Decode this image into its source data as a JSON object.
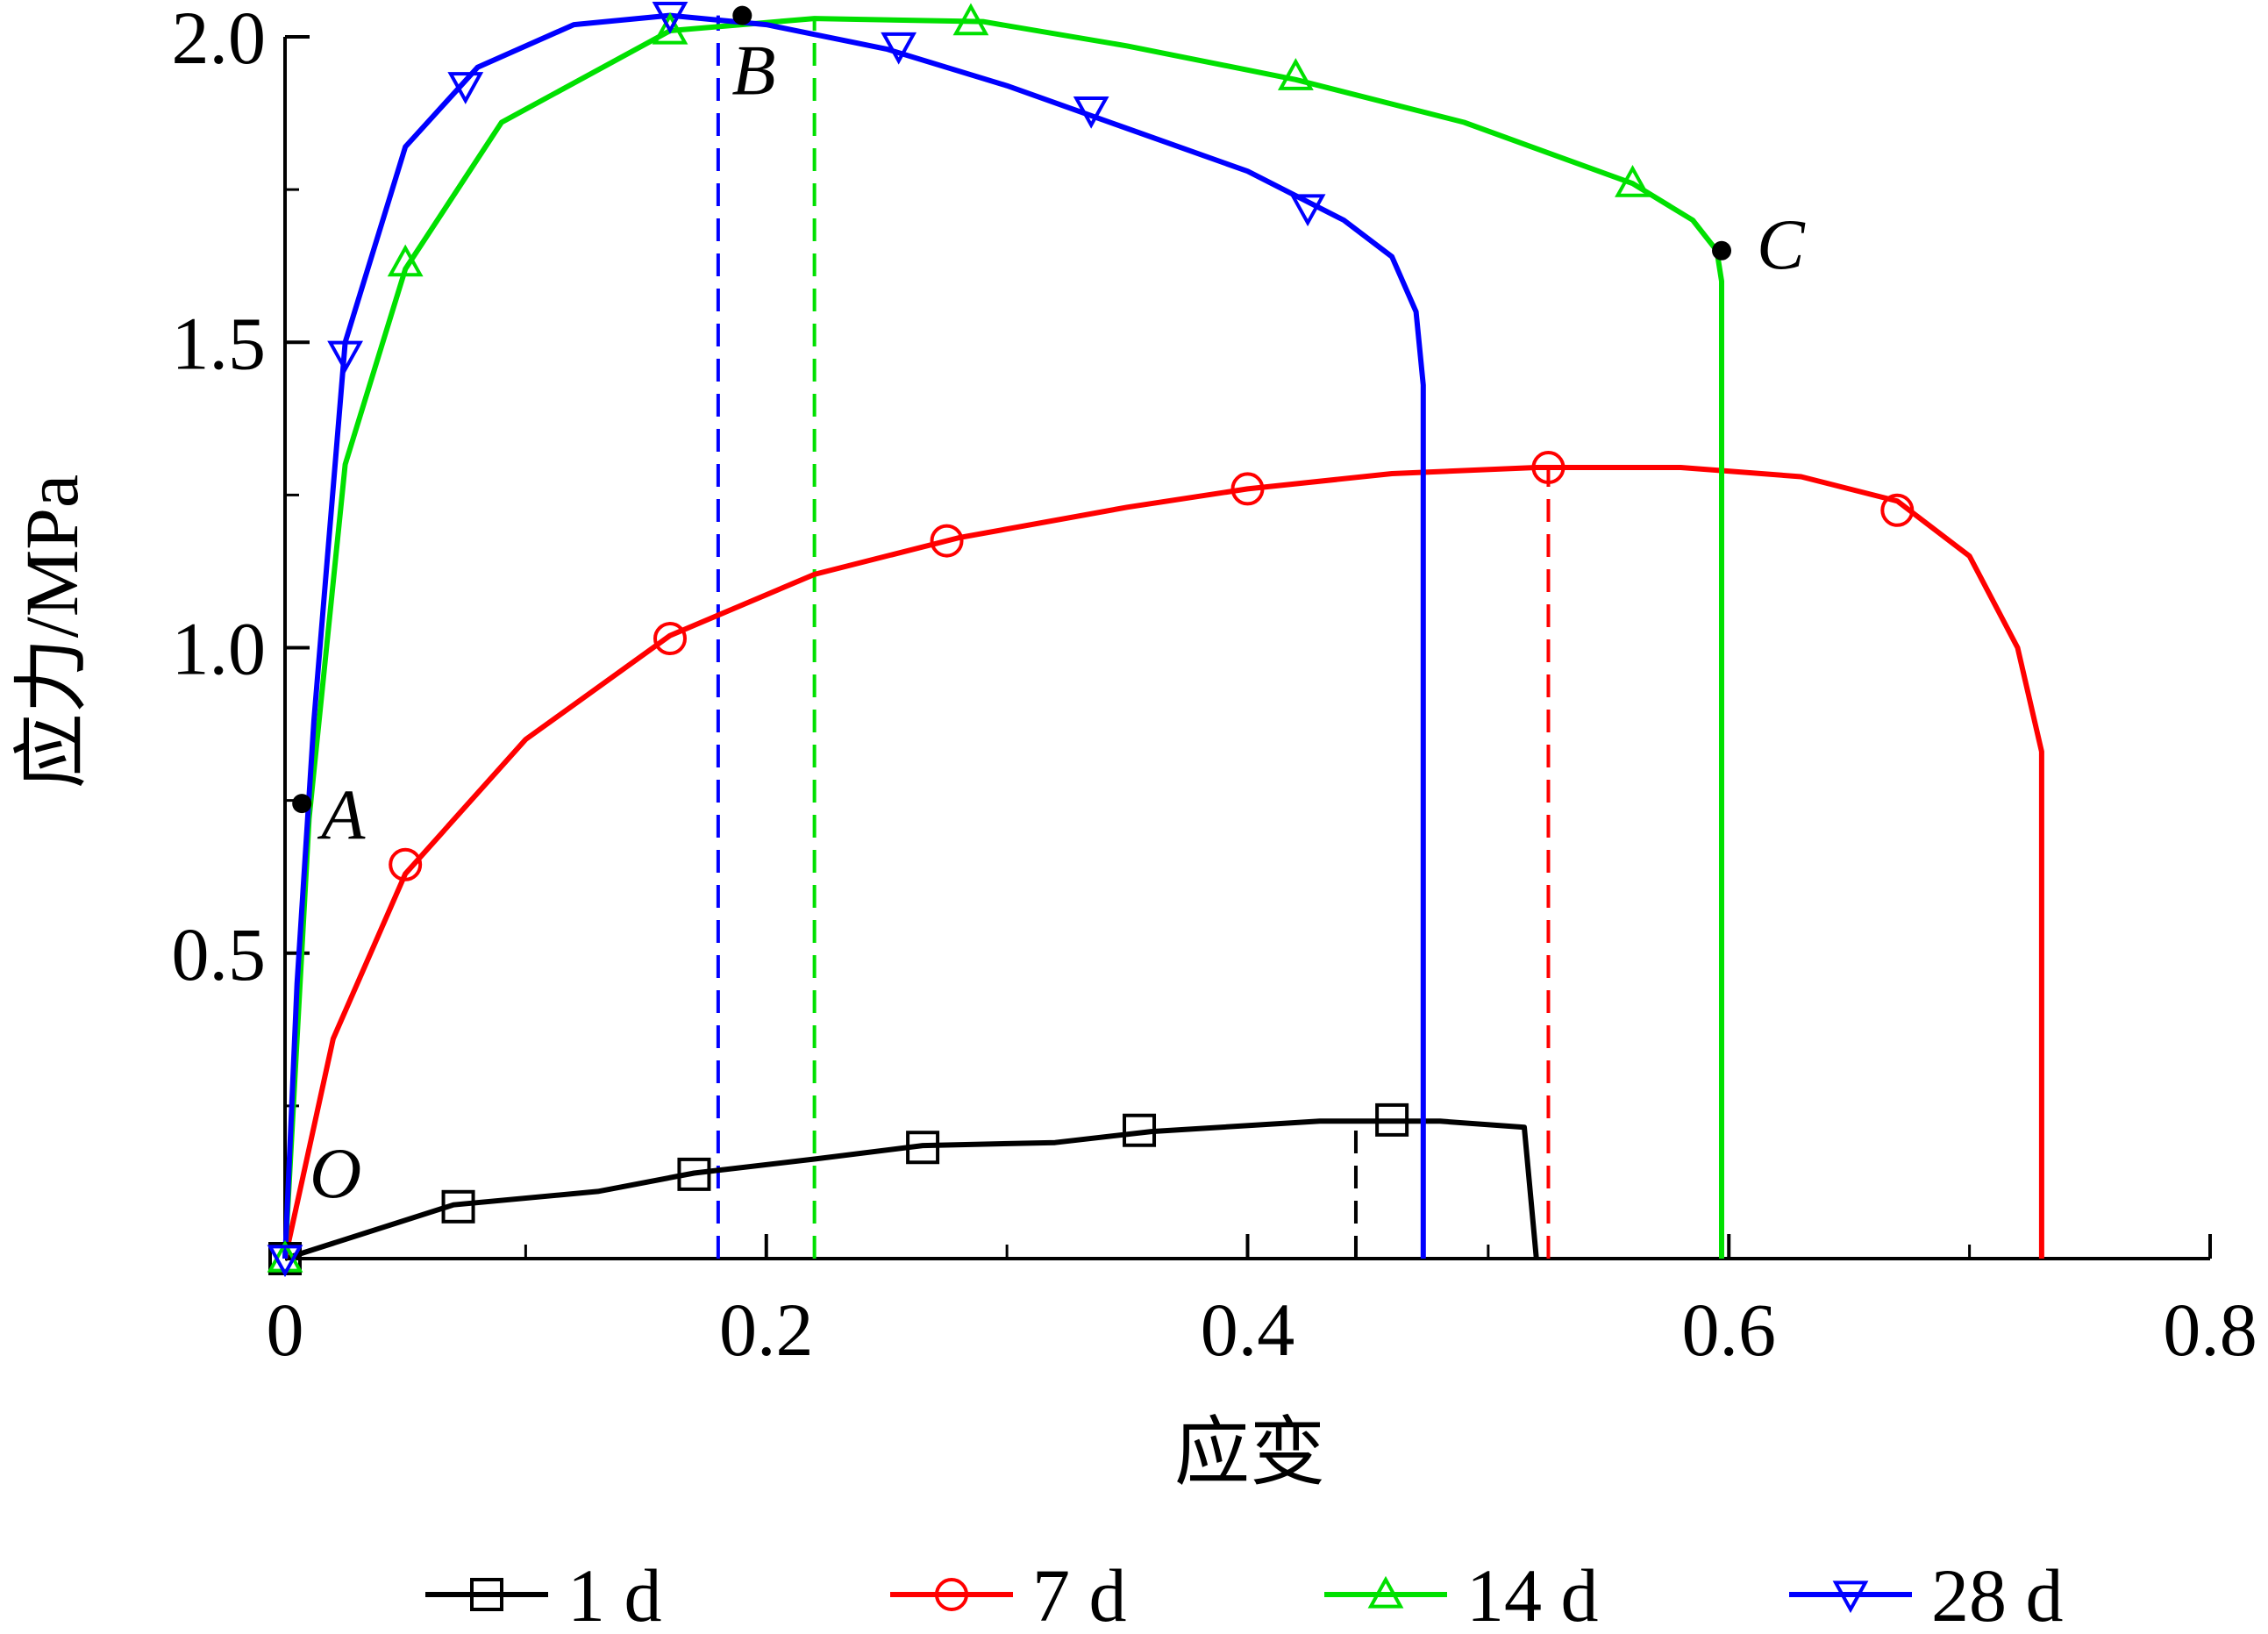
{
  "chart_data": {
    "type": "line",
    "title": "",
    "xlabel": "应变",
    "ylabel": "应力/MPa",
    "xlim": [
      0,
      0.8
    ],
    "ylim": [
      0,
      2.0
    ],
    "x_ticks": [
      0,
      0.2,
      0.4,
      0.6,
      0.8
    ],
    "x_tick_labels": [
      "0",
      "0.2",
      "0.4",
      "0.6",
      "0.8"
    ],
    "y_ticks": [
      0.5,
      1.0,
      1.5,
      2.0
    ],
    "y_tick_labels": [
      "0.5",
      "1.0",
      "1.5",
      "2.0"
    ],
    "grid": false,
    "legend_position": "bottom",
    "series": [
      {
        "name": "1 d",
        "color": "#000000",
        "marker": "square",
        "points": [
          [
            0,
            0
          ],
          [
            0.07,
            0.088
          ],
          [
            0.13,
            0.11
          ],
          [
            0.17,
            0.14
          ],
          [
            0.22,
            0.163
          ],
          [
            0.265,
            0.185
          ],
          [
            0.32,
            0.19
          ],
          [
            0.36,
            0.208
          ],
          [
            0.43,
            0.225
          ],
          [
            0.48,
            0.225
          ],
          [
            0.515,
            0.215
          ],
          [
            0.52,
            0
          ]
        ],
        "markers": [
          [
            0,
            0
          ],
          [
            0.072,
            0.085
          ],
          [
            0.17,
            0.138
          ],
          [
            0.265,
            0.182
          ],
          [
            0.355,
            0.21
          ],
          [
            0.46,
            0.227
          ]
        ]
      },
      {
        "name": "7 d",
        "color": "#ff0000",
        "marker": "circle",
        "points": [
          [
            0,
            0
          ],
          [
            0.02,
            0.36
          ],
          [
            0.05,
            0.63
          ],
          [
            0.1,
            0.85
          ],
          [
            0.16,
            1.02
          ],
          [
            0.22,
            1.12
          ],
          [
            0.28,
            1.18
          ],
          [
            0.35,
            1.23
          ],
          [
            0.4,
            1.26
          ],
          [
            0.46,
            1.285
          ],
          [
            0.52,
            1.295
          ],
          [
            0.58,
            1.295
          ],
          [
            0.63,
            1.28
          ],
          [
            0.67,
            1.24
          ],
          [
            0.7,
            1.15
          ],
          [
            0.72,
            1.0
          ],
          [
            0.73,
            0.83
          ],
          [
            0.73,
            0
          ]
        ],
        "markers": [
          [
            0.05,
            0.645
          ],
          [
            0.16,
            1.015
          ],
          [
            0.275,
            1.175
          ],
          [
            0.4,
            1.26
          ],
          [
            0.525,
            1.295
          ],
          [
            0.67,
            1.225
          ]
        ]
      },
      {
        "name": "14 d",
        "color": "#00e000",
        "marker": "triangle-up",
        "points": [
          [
            0,
            0
          ],
          [
            0.01,
            0.72
          ],
          [
            0.025,
            1.3
          ],
          [
            0.05,
            1.62
          ],
          [
            0.09,
            1.86
          ],
          [
            0.16,
            2.01
          ],
          [
            0.22,
            2.03
          ],
          [
            0.29,
            2.025
          ],
          [
            0.35,
            1.985
          ],
          [
            0.42,
            1.93
          ],
          [
            0.49,
            1.86
          ],
          [
            0.56,
            1.76
          ],
          [
            0.585,
            1.7
          ],
          [
            0.595,
            1.65
          ],
          [
            0.597,
            1.6
          ],
          [
            0.597,
            0
          ]
        ],
        "markers": [
          [
            0,
            0
          ],
          [
            0.05,
            1.63
          ],
          [
            0.16,
            2.01
          ],
          [
            0.285,
            2.025
          ],
          [
            0.42,
            1.935
          ],
          [
            0.56,
            1.76
          ]
        ]
      },
      {
        "name": "28 d",
        "color": "#0000ff",
        "marker": "triangle-down",
        "points": [
          [
            0,
            0
          ],
          [
            0.005,
            0.45
          ],
          [
            0.012,
            0.88
          ],
          [
            0.025,
            1.5
          ],
          [
            0.05,
            1.82
          ],
          [
            0.08,
            1.95
          ],
          [
            0.12,
            2.02
          ],
          [
            0.16,
            2.035
          ],
          [
            0.2,
            2.02
          ],
          [
            0.25,
            1.98
          ],
          [
            0.3,
            1.92
          ],
          [
            0.35,
            1.85
          ],
          [
            0.4,
            1.78
          ],
          [
            0.44,
            1.7
          ],
          [
            0.46,
            1.64
          ],
          [
            0.47,
            1.55
          ],
          [
            0.473,
            1.43
          ],
          [
            0.473,
            0
          ]
        ],
        "markers": [
          [
            0,
            0
          ],
          [
            0.025,
            1.48
          ],
          [
            0.075,
            1.92
          ],
          [
            0.16,
            2.035
          ],
          [
            0.255,
            1.985
          ],
          [
            0.335,
            1.88
          ],
          [
            0.425,
            1.72
          ]
        ]
      }
    ],
    "dashed_lines": [
      {
        "color": "#000000",
        "x": 0.445,
        "y": 0.225
      },
      {
        "color": "#ff0000",
        "x": 0.525,
        "y": 1.295
      },
      {
        "color": "#00e000",
        "x": 0.22,
        "y": 2.03
      },
      {
        "color": "#0000ff",
        "x": 0.18,
        "y": 2.035
      }
    ],
    "annotations": [
      {
        "label": "O",
        "x": 0,
        "y": 0
      },
      {
        "label": "A",
        "x": 0.007,
        "y": 0.745
      },
      {
        "label": "B",
        "x": 0.19,
        "y": 2.035
      },
      {
        "label": "C",
        "x": 0.597,
        "y": 1.65
      }
    ]
  }
}
